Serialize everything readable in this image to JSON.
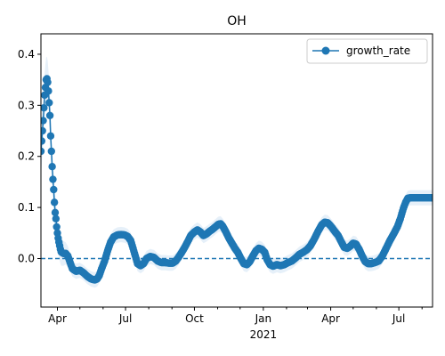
{
  "chart_data": {
    "type": "line",
    "title": "OH",
    "xlabel": "",
    "ylabel": "",
    "x_range": [
      "2020-03-10",
      "2021-08-15"
    ],
    "ylim": [
      -0.095,
      0.44
    ],
    "x_ticks": [
      {
        "date": "2020-04-01",
        "label": "Apr"
      },
      {
        "date": "2020-07-01",
        "label": "Jul"
      },
      {
        "date": "2020-10-01",
        "label": "Oct"
      },
      {
        "date": "2021-01-01",
        "label": "Jan",
        "sublabel": "2021"
      },
      {
        "date": "2021-04-01",
        "label": "Apr"
      },
      {
        "date": "2021-07-01",
        "label": "Jul"
      }
    ],
    "y_ticks": [
      0.0,
      0.1,
      0.2,
      0.3,
      0.4
    ],
    "y_tick_labels": [
      "0.0",
      "0.1",
      "0.2",
      "0.3",
      "0.4"
    ],
    "reference_line": {
      "y": 0.0,
      "style": "dashed",
      "color": "#1f77b4"
    },
    "legend": {
      "position": "top-right",
      "entries": [
        "growth_rate"
      ]
    },
    "grid": false,
    "series": [
      {
        "name": "growth_rate",
        "color": "#1f77b4",
        "band_color": "#deebf7",
        "band_halfwidth": [
          {
            "date": "2020-03-10",
            "value": 0.05
          },
          {
            "date": "2020-04-20",
            "value": 0.015
          },
          {
            "date": "2021-08-15",
            "value": 0.015
          }
        ],
        "points": [
          {
            "date": "2020-03-10",
            "value": 0.21
          },
          {
            "date": "2020-03-11",
            "value": 0.23
          },
          {
            "date": "2020-03-12",
            "value": 0.25
          },
          {
            "date": "2020-03-13",
            "value": 0.27
          },
          {
            "date": "2020-03-14",
            "value": 0.295
          },
          {
            "date": "2020-03-15",
            "value": 0.32
          },
          {
            "date": "2020-03-16",
            "value": 0.335
          },
          {
            "date": "2020-03-17",
            "value": 0.35
          },
          {
            "date": "2020-03-18",
            "value": 0.352
          },
          {
            "date": "2020-03-19",
            "value": 0.345
          },
          {
            "date": "2020-03-20",
            "value": 0.328
          },
          {
            "date": "2020-03-21",
            "value": 0.305
          },
          {
            "date": "2020-03-22",
            "value": 0.28
          },
          {
            "date": "2020-03-23",
            "value": 0.24
          },
          {
            "date": "2020-03-24",
            "value": 0.21
          },
          {
            "date": "2020-03-25",
            "value": 0.18
          },
          {
            "date": "2020-03-26",
            "value": 0.155
          },
          {
            "date": "2020-03-27",
            "value": 0.135
          },
          {
            "date": "2020-03-28",
            "value": 0.11
          },
          {
            "date": "2020-03-29",
            "value": 0.09
          },
          {
            "date": "2020-03-30",
            "value": 0.078
          },
          {
            "date": "2020-03-31",
            "value": 0.062
          },
          {
            "date": "2020-04-01",
            "value": 0.05
          },
          {
            "date": "2020-04-02",
            "value": 0.04
          },
          {
            "date": "2020-04-03",
            "value": 0.032
          },
          {
            "date": "2020-04-04",
            "value": 0.025
          },
          {
            "date": "2020-04-05",
            "value": 0.018
          },
          {
            "date": "2020-04-06",
            "value": 0.013
          },
          {
            "date": "2020-04-09",
            "value": 0.01
          },
          {
            "date": "2020-04-12",
            "value": 0.01
          },
          {
            "date": "2020-04-15",
            "value": 0.005
          },
          {
            "date": "2020-04-18",
            "value": -0.008
          },
          {
            "date": "2020-04-21",
            "value": -0.02
          },
          {
            "date": "2020-04-26",
            "value": -0.025
          },
          {
            "date": "2020-05-01",
            "value": -0.023
          },
          {
            "date": "2020-05-06",
            "value": -0.028
          },
          {
            "date": "2020-05-11",
            "value": -0.035
          },
          {
            "date": "2020-05-16",
            "value": -0.04
          },
          {
            "date": "2020-05-21",
            "value": -0.042
          },
          {
            "date": "2020-05-24",
            "value": -0.04
          },
          {
            "date": "2020-05-27",
            "value": -0.033
          },
          {
            "date": "2020-05-30",
            "value": -0.02
          },
          {
            "date": "2020-06-03",
            "value": -0.005
          },
          {
            "date": "2020-06-07",
            "value": 0.015
          },
          {
            "date": "2020-06-11",
            "value": 0.032
          },
          {
            "date": "2020-06-15",
            "value": 0.042
          },
          {
            "date": "2020-06-20",
            "value": 0.046
          },
          {
            "date": "2020-06-25",
            "value": 0.047
          },
          {
            "date": "2020-06-30",
            "value": 0.046
          },
          {
            "date": "2020-07-04",
            "value": 0.043
          },
          {
            "date": "2020-07-08",
            "value": 0.035
          },
          {
            "date": "2020-07-11",
            "value": 0.02
          },
          {
            "date": "2020-07-14",
            "value": 0.005
          },
          {
            "date": "2020-07-17",
            "value": -0.01
          },
          {
            "date": "2020-07-21",
            "value": -0.014
          },
          {
            "date": "2020-07-25",
            "value": -0.01
          },
          {
            "date": "2020-07-29",
            "value": 0.0
          },
          {
            "date": "2020-08-03",
            "value": 0.004
          },
          {
            "date": "2020-08-08",
            "value": 0.002
          },
          {
            "date": "2020-08-13",
            "value": -0.005
          },
          {
            "date": "2020-08-18",
            "value": -0.008
          },
          {
            "date": "2020-08-23",
            "value": -0.008
          },
          {
            "date": "2020-08-28",
            "value": -0.009
          },
          {
            "date": "2020-09-02",
            "value": -0.009
          },
          {
            "date": "2020-09-06",
            "value": -0.005
          },
          {
            "date": "2020-09-10",
            "value": 0.003
          },
          {
            "date": "2020-09-14",
            "value": 0.012
          },
          {
            "date": "2020-09-18",
            "value": 0.022
          },
          {
            "date": "2020-09-22",
            "value": 0.033
          },
          {
            "date": "2020-09-26",
            "value": 0.045
          },
          {
            "date": "2020-10-01",
            "value": 0.052
          },
          {
            "date": "2020-10-05",
            "value": 0.056
          },
          {
            "date": "2020-10-09",
            "value": 0.052
          },
          {
            "date": "2020-10-13",
            "value": 0.045
          },
          {
            "date": "2020-10-17",
            "value": 0.048
          },
          {
            "date": "2020-10-21",
            "value": 0.053
          },
          {
            "date": "2020-10-25",
            "value": 0.057
          },
          {
            "date": "2020-10-29",
            "value": 0.062
          },
          {
            "date": "2020-11-02",
            "value": 0.067
          },
          {
            "date": "2020-11-05",
            "value": 0.068
          },
          {
            "date": "2020-11-08",
            "value": 0.063
          },
          {
            "date": "2020-11-12",
            "value": 0.052
          },
          {
            "date": "2020-11-16",
            "value": 0.04
          },
          {
            "date": "2020-11-20",
            "value": 0.03
          },
          {
            "date": "2020-11-24",
            "value": 0.02
          },
          {
            "date": "2020-11-28",
            "value": 0.012
          },
          {
            "date": "2020-12-02",
            "value": 0.0
          },
          {
            "date": "2020-12-06",
            "value": -0.01
          },
          {
            "date": "2020-12-10",
            "value": -0.012
          },
          {
            "date": "2020-12-14",
            "value": -0.006
          },
          {
            "date": "2020-12-18",
            "value": 0.005
          },
          {
            "date": "2020-12-22",
            "value": 0.015
          },
          {
            "date": "2020-12-26",
            "value": 0.02
          },
          {
            "date": "2020-12-30",
            "value": 0.018
          },
          {
            "date": "2021-01-03",
            "value": 0.012
          },
          {
            "date": "2021-01-06",
            "value": -0.002
          },
          {
            "date": "2021-01-10",
            "value": -0.012
          },
          {
            "date": "2021-01-14",
            "value": -0.015
          },
          {
            "date": "2021-01-19",
            "value": -0.012
          },
          {
            "date": "2021-01-24",
            "value": -0.014
          },
          {
            "date": "2021-01-29",
            "value": -0.012
          },
          {
            "date": "2021-02-03",
            "value": -0.008
          },
          {
            "date": "2021-02-08",
            "value": -0.005
          },
          {
            "date": "2021-02-13",
            "value": 0.001
          },
          {
            "date": "2021-02-18",
            "value": 0.008
          },
          {
            "date": "2021-02-23",
            "value": 0.012
          },
          {
            "date": "2021-02-28",
            "value": 0.017
          },
          {
            "date": "2021-03-05",
            "value": 0.025
          },
          {
            "date": "2021-03-10",
            "value": 0.038
          },
          {
            "date": "2021-03-15",
            "value": 0.053
          },
          {
            "date": "2021-03-20",
            "value": 0.066
          },
          {
            "date": "2021-03-24",
            "value": 0.071
          },
          {
            "date": "2021-03-28",
            "value": 0.07
          },
          {
            "date": "2021-04-02",
            "value": 0.062
          },
          {
            "date": "2021-04-07",
            "value": 0.052
          },
          {
            "date": "2021-04-11",
            "value": 0.045
          },
          {
            "date": "2021-04-15",
            "value": 0.033
          },
          {
            "date": "2021-04-19",
            "value": 0.022
          },
          {
            "date": "2021-04-23",
            "value": 0.02
          },
          {
            "date": "2021-04-27",
            "value": 0.024
          },
          {
            "date": "2021-05-01",
            "value": 0.03
          },
          {
            "date": "2021-05-05",
            "value": 0.028
          },
          {
            "date": "2021-05-09",
            "value": 0.018
          },
          {
            "date": "2021-05-13",
            "value": 0.005
          },
          {
            "date": "2021-05-17",
            "value": -0.006
          },
          {
            "date": "2021-05-21",
            "value": -0.01
          },
          {
            "date": "2021-05-25",
            "value": -0.01
          },
          {
            "date": "2021-05-30",
            "value": -0.008
          },
          {
            "date": "2021-06-04",
            "value": -0.005
          },
          {
            "date": "2021-06-09",
            "value": 0.005
          },
          {
            "date": "2021-06-14",
            "value": 0.02
          },
          {
            "date": "2021-06-19",
            "value": 0.035
          },
          {
            "date": "2021-06-24",
            "value": 0.048
          },
          {
            "date": "2021-06-29",
            "value": 0.062
          },
          {
            "date": "2021-07-03",
            "value": 0.078
          },
          {
            "date": "2021-07-07",
            "value": 0.098
          },
          {
            "date": "2021-07-10",
            "value": 0.11
          },
          {
            "date": "2021-07-13",
            "value": 0.118
          },
          {
            "date": "2021-07-17",
            "value": 0.119
          },
          {
            "date": "2021-07-22",
            "value": 0.119
          },
          {
            "date": "2021-07-27",
            "value": 0.119
          },
          {
            "date": "2021-08-01",
            "value": 0.119
          },
          {
            "date": "2021-08-06",
            "value": 0.119
          },
          {
            "date": "2021-08-11",
            "value": 0.119
          },
          {
            "date": "2021-08-15",
            "value": 0.119
          }
        ]
      }
    ]
  }
}
